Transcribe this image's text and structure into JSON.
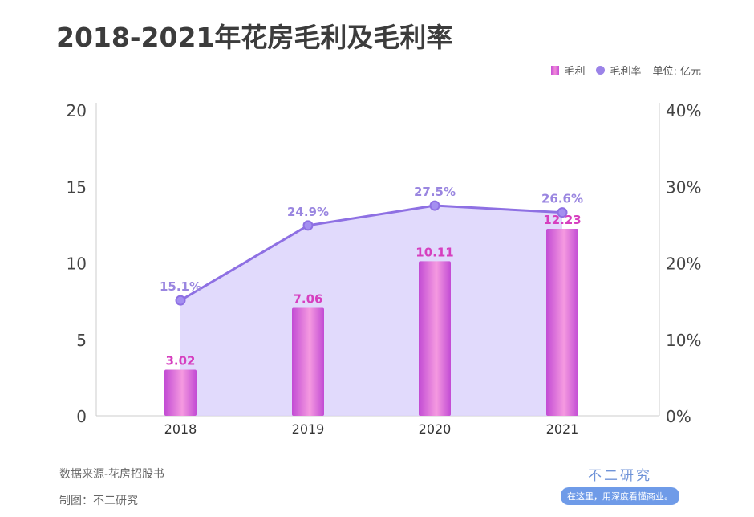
{
  "chart_data": {
    "type": "bar",
    "title": "2018-2021年花房毛利及毛利率",
    "categories": [
      "2018",
      "2019",
      "2020",
      "2021"
    ],
    "series": [
      {
        "name": "毛利",
        "type": "bar",
        "axis": "left",
        "values": [
          3.02,
          7.06,
          10.11,
          12.23
        ],
        "labels": [
          "3.02",
          "7.06",
          "10.11",
          "12.23"
        ]
      },
      {
        "name": "毛利率",
        "type": "area-line",
        "axis": "right",
        "values": [
          15.1,
          24.9,
          27.5,
          26.6
        ],
        "labels": [
          "15.1%",
          "24.9%",
          "27.5%",
          "26.6%"
        ]
      }
    ],
    "left_axis": {
      "ylim": [
        0,
        20
      ],
      "ticks": [
        "0",
        "5",
        "10",
        "15",
        "20"
      ]
    },
    "right_axis": {
      "ylim": [
        0,
        40
      ],
      "ticks": [
        "0%",
        "10%",
        "20%",
        "30%",
        "40%"
      ]
    },
    "unit": "单位: 亿元",
    "legend_placement": "top-right",
    "colors": {
      "bar": "#d45bd8",
      "bar_label": "#d63fbf",
      "line": "#8e70e3",
      "area": "#dcd3fb",
      "line_label": "#9a86e0"
    }
  },
  "footer": {
    "source": "数据来源-花房招股书",
    "made_by": "制图：不二研究"
  },
  "brand": {
    "name": "不二研究",
    "tagline": "在这里，用深度看懂商业。"
  }
}
